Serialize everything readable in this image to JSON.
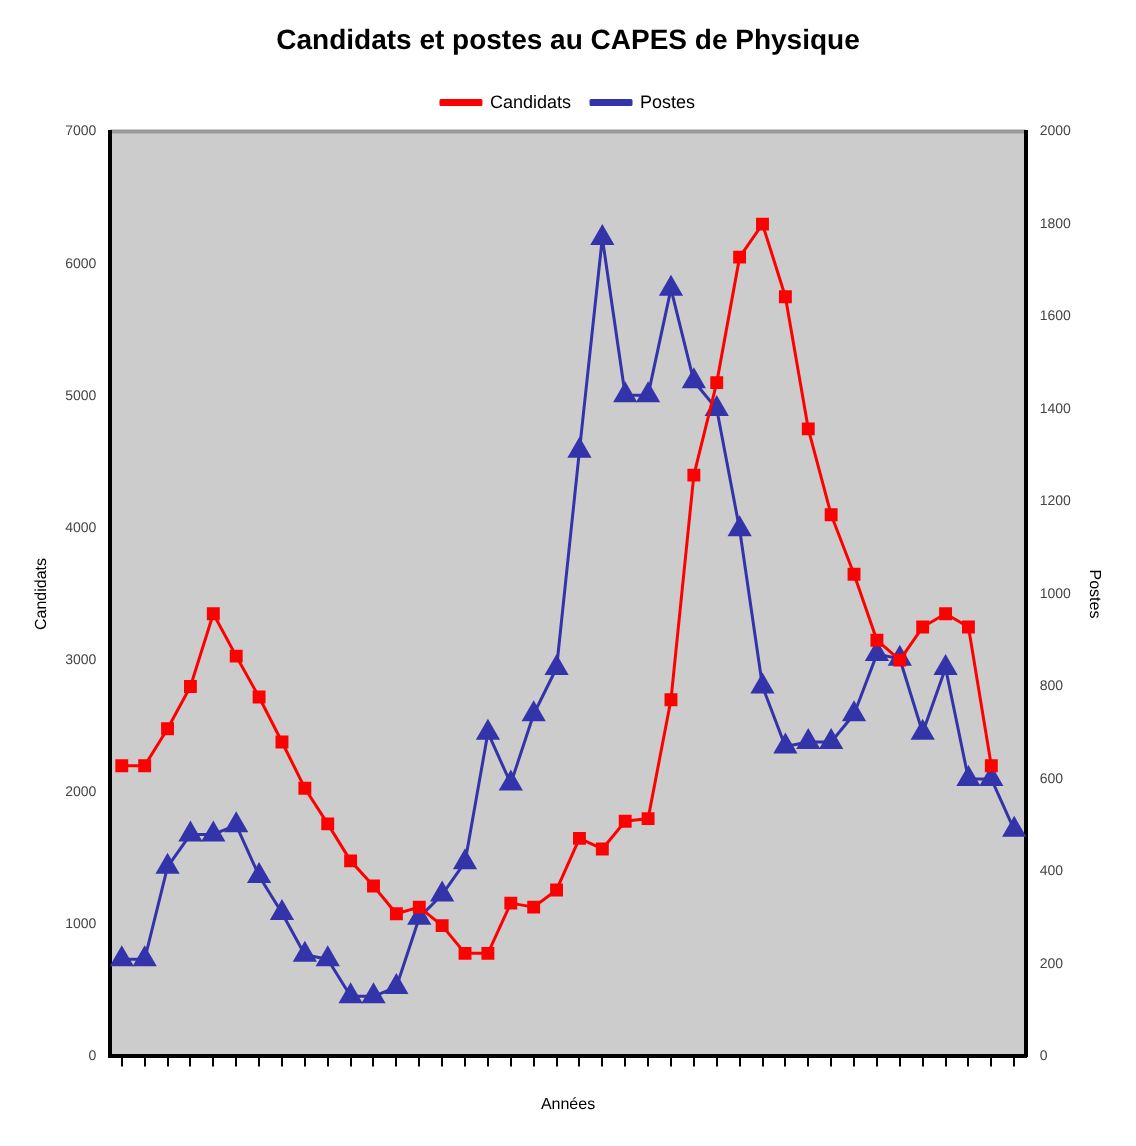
{
  "chart_data": {
    "type": "line",
    "title": "Candidats et postes au CAPES de Physique",
    "xlabel": "Années",
    "ylabel": "Candidats",
    "y2label": "Postes",
    "categories": [
      null,
      null,
      null,
      null,
      null,
      null,
      null,
      null,
      null,
      null,
      null,
      null,
      null,
      null,
      null,
      null,
      null,
      null,
      null,
      null,
      null,
      null,
      null,
      null,
      null,
      null,
      null,
      null,
      null,
      null,
      null,
      null,
      null,
      null,
      null,
      null,
      null,
      null,
      null,
      null
    ],
    "series": [
      {
        "name": "Candidats",
        "color": "#ff0000",
        "marker": "square",
        "values": [
          2200,
          2200,
          2480,
          2800,
          3350,
          3030,
          2720,
          2380,
          2030,
          1760,
          1480,
          1290,
          1080,
          1130,
          990,
          780,
          780,
          1160,
          1130,
          1260,
          1650,
          1570,
          1780,
          1800,
          2700,
          4400,
          5100,
          6050,
          6300,
          5750,
          4750,
          4100,
          3650,
          3150,
          3000,
          3250,
          3350,
          3250,
          2200,
          null
        ]
      },
      {
        "name": "Postes",
        "color": "#3333aa",
        "marker": "triangle",
        "axis": "y2",
        "values": [
          210,
          210,
          410,
          480,
          480,
          500,
          390,
          310,
          220,
          210,
          130,
          130,
          150,
          300,
          350,
          420,
          700,
          590,
          740,
          840,
          1310,
          1770,
          1430,
          1430,
          1660,
          1460,
          1400,
          1140,
          800,
          670,
          680,
          680,
          740,
          870,
          860,
          700,
          840,
          600,
          600,
          490
        ]
      }
    ],
    "ylim": [
      0,
      7000
    ],
    "yticks": [
      0,
      1000,
      2000,
      3000,
      4000,
      5000,
      6000,
      7000
    ],
    "y2lim": [
      0,
      2000
    ],
    "y2ticks": [
      0,
      200,
      400,
      600,
      800,
      1000,
      1200,
      1400,
      1600,
      1800,
      2000
    ],
    "grid": false,
    "legend": "top",
    "line_style": "solid"
  }
}
